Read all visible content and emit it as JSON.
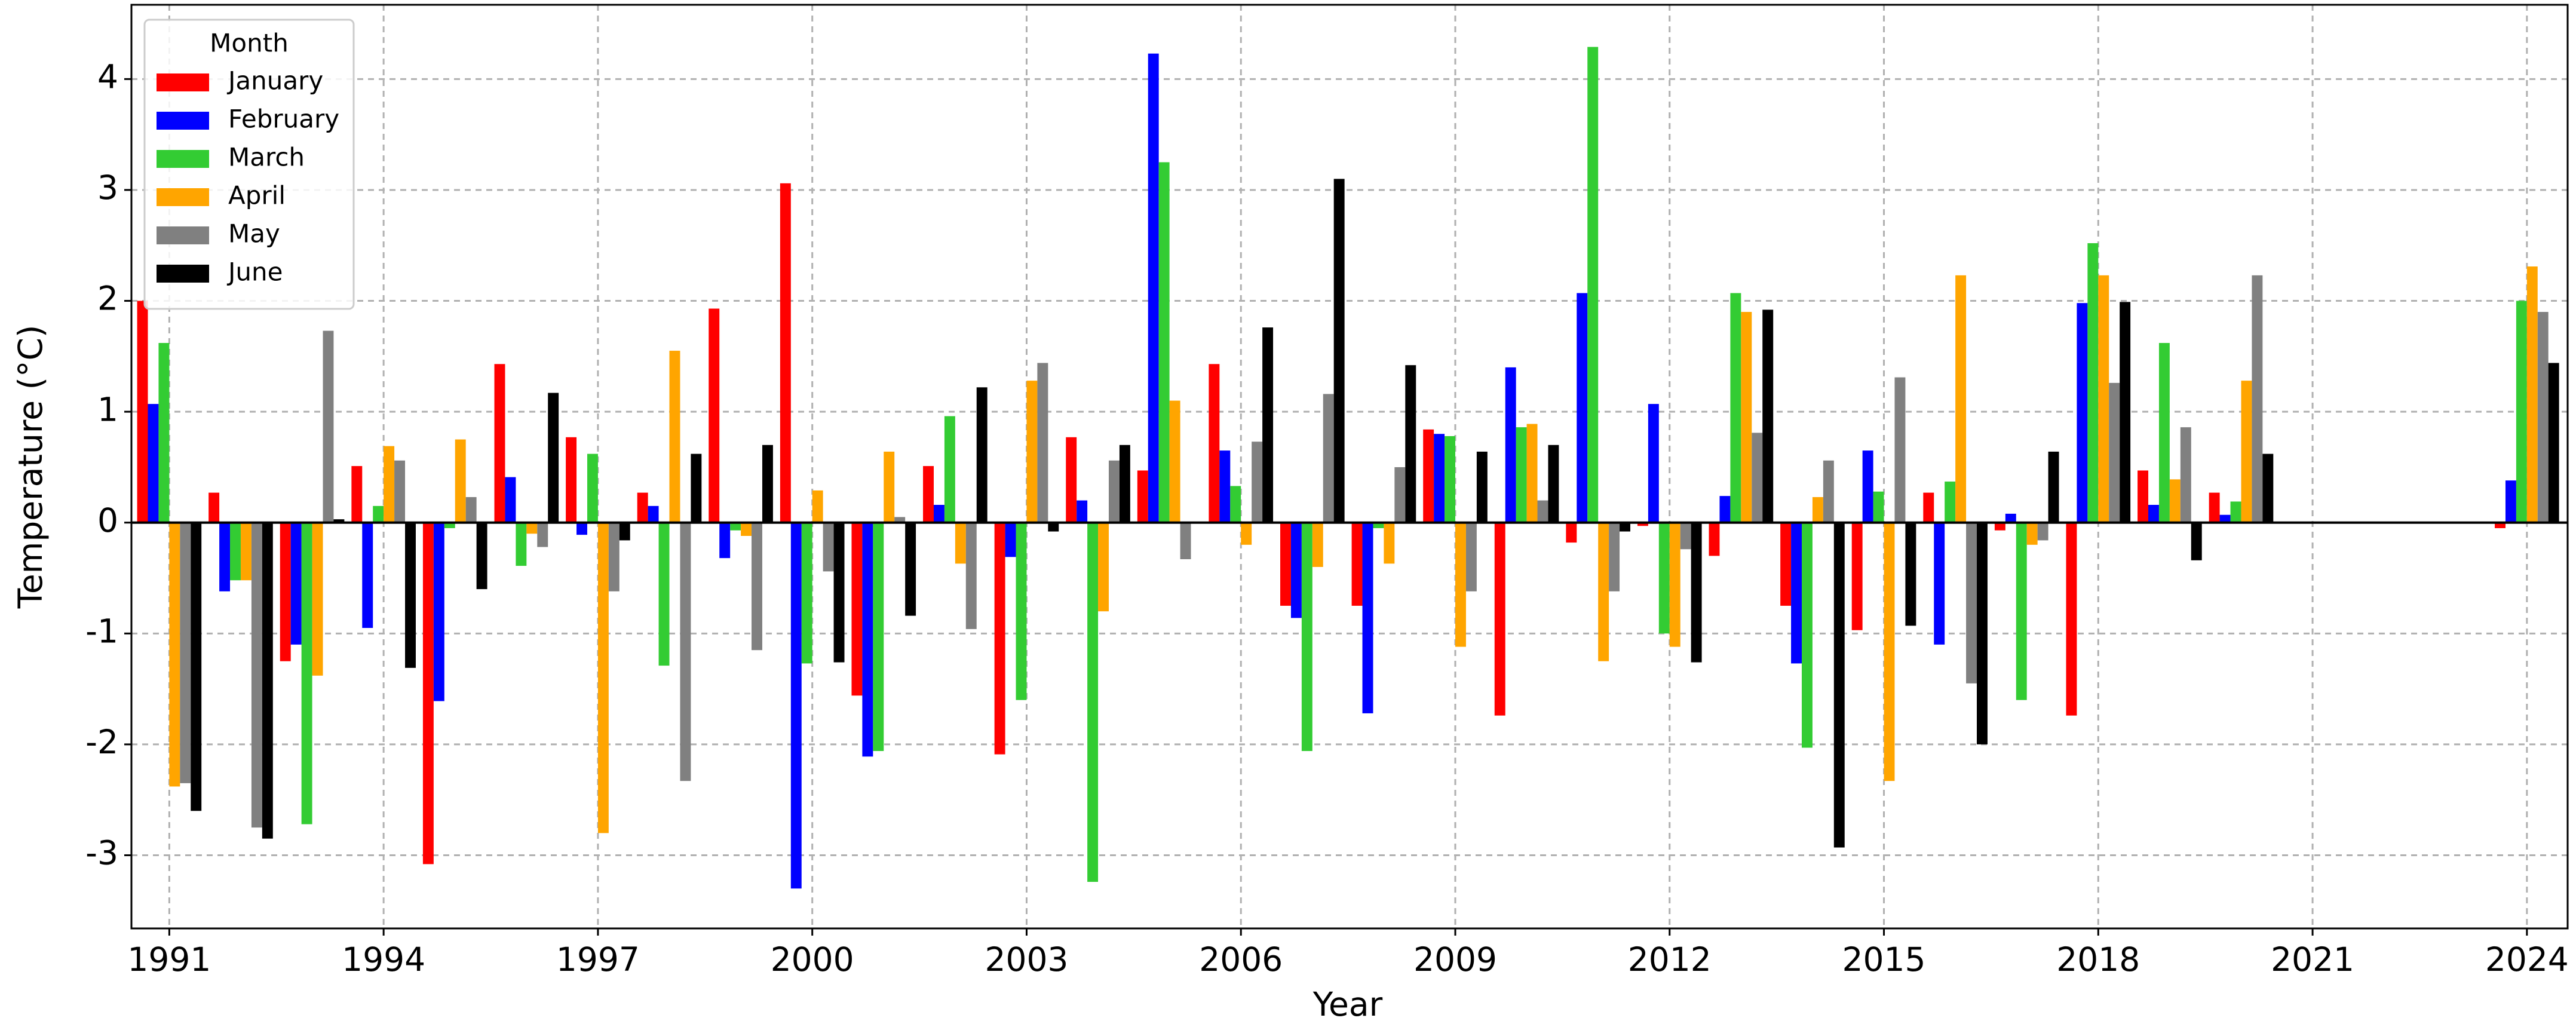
{
  "chart_data": {
    "type": "bar",
    "x_label": "Year",
    "y_label": "Temperature (°C)",
    "x": [
      1991,
      1992,
      1993,
      1994,
      1995,
      1996,
      1997,
      1998,
      1999,
      2000,
      2001,
      2002,
      2003,
      2004,
      2005,
      2006,
      2007,
      2008,
      2009,
      2010,
      2011,
      2012,
      2013,
      2014,
      2015,
      2016,
      2017,
      2018,
      2019,
      2020,
      2021,
      2022,
      2023,
      2024
    ],
    "series": [
      {
        "name": "January",
        "color": "#ff0000",
        "values": [
          2.0,
          0.27,
          -1.25,
          0.51,
          -3.08,
          1.43,
          0.77,
          0.27,
          1.93,
          3.06,
          -1.56,
          0.51,
          -2.09,
          0.77,
          0.47,
          1.43,
          -0.75,
          -0.75,
          0.84,
          -1.74,
          -0.18,
          -0.03,
          -0.3,
          -0.75,
          -0.97,
          0.27,
          -0.07,
          -1.74,
          0.47,
          0.27,
          null,
          null,
          null,
          -0.05
        ]
      },
      {
        "name": "February",
        "color": "#0000ff",
        "values": [
          1.07,
          -0.62,
          -1.1,
          -0.95,
          -1.61,
          0.41,
          -0.11,
          0.15,
          -0.32,
          -3.3,
          -2.11,
          0.16,
          -0.31,
          0.2,
          4.23,
          0.65,
          -0.86,
          -1.72,
          0.8,
          1.4,
          2.07,
          1.07,
          0.24,
          -1.27,
          0.65,
          -1.1,
          0.08,
          1.98,
          0.16,
          0.07,
          null,
          null,
          null,
          0.38
        ]
      },
      {
        "name": "March",
        "color": "#33cc33",
        "values": [
          1.62,
          -0.52,
          -2.72,
          0.15,
          -0.05,
          -0.39,
          0.62,
          -1.29,
          -0.07,
          -1.27,
          -2.06,
          0.96,
          -1.6,
          -3.24,
          3.25,
          0.33,
          -2.06,
          -0.05,
          0.78,
          0.86,
          4.29,
          -1.0,
          2.07,
          -2.03,
          0.28,
          0.37,
          -1.6,
          2.52,
          1.62,
          0.19,
          null,
          null,
          null,
          2.0
        ]
      },
      {
        "name": "April",
        "color": "#ffa500",
        "values": [
          -2.38,
          -0.52,
          -1.38,
          0.69,
          0.75,
          -0.1,
          -2.8,
          1.55,
          -0.12,
          0.29,
          0.64,
          -0.37,
          1.28,
          -0.8,
          1.1,
          -0.2,
          -0.4,
          -0.37,
          -1.12,
          0.89,
          -1.25,
          -1.12,
          1.9,
          0.23,
          -2.33,
          2.23,
          -0.2,
          2.23,
          0.39,
          1.28,
          null,
          null,
          null,
          2.31
        ]
      },
      {
        "name": "May",
        "color": "#808080",
        "values": [
          -2.35,
          -2.75,
          1.73,
          0.56,
          0.23,
          -0.22,
          -0.62,
          -2.33,
          -1.15,
          -0.44,
          0.05,
          -0.96,
          1.44,
          0.56,
          -0.33,
          0.73,
          1.16,
          0.5,
          -0.62,
          0.2,
          -0.62,
          -0.24,
          0.81,
          0.56,
          1.31,
          -1.45,
          -0.16,
          1.26,
          0.86,
          2.23,
          null,
          null,
          null,
          1.9
        ]
      },
      {
        "name": "June",
        "color": "#000000",
        "values": [
          -2.6,
          -2.85,
          0.03,
          -1.31,
          -0.6,
          1.17,
          -0.16,
          0.62,
          0.7,
          -1.26,
          -0.84,
          1.22,
          -0.08,
          0.7,
          null,
          1.76,
          3.1,
          1.42,
          0.64,
          0.7,
          -0.08,
          -1.26,
          1.92,
          -2.93,
          -0.93,
          -2.0,
          0.64,
          1.99,
          -0.34,
          0.62,
          null,
          null,
          null,
          1.44
        ]
      }
    ],
    "xlim": [
      1990.47,
      2024.57
    ],
    "xticks": [
      1991,
      1994,
      1997,
      2000,
      2003,
      2006,
      2009,
      2012,
      2015,
      2018,
      2021,
      2024
    ],
    "ylim": [
      -3.66,
      4.67
    ],
    "yticks": [
      -3,
      -2,
      -1,
      0,
      1,
      2,
      3,
      4
    ],
    "grid": true,
    "legend": "upper left",
    "legend_title": "Month"
  }
}
